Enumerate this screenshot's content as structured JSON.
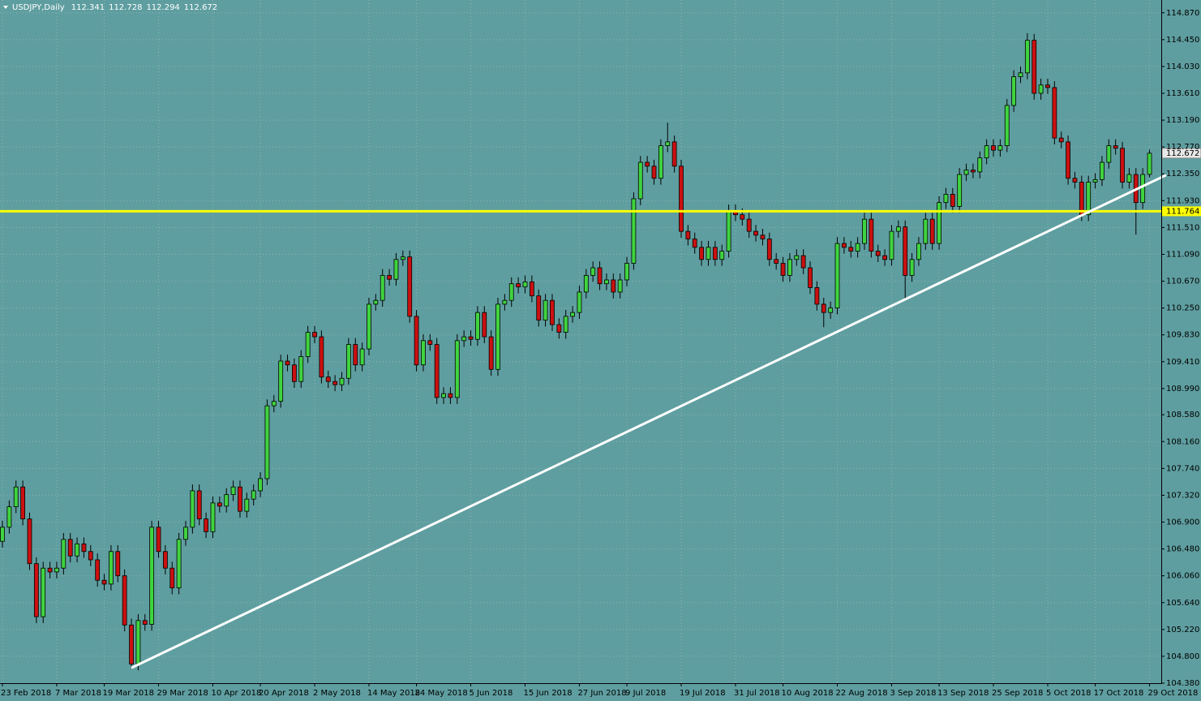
{
  "chart_data": {
    "type": "candlestick",
    "title": "USDJPY,Daily",
    "categories": [
      "23 Feb 2018",
      null,
      null,
      null,
      null,
      null,
      null,
      null,
      "7 Mar 2018",
      null,
      null,
      null,
      null,
      null,
      null,
      "19 Mar 2018",
      null,
      null,
      null,
      null,
      null,
      null,
      null,
      "29 Mar 2018",
      null,
      null,
      null,
      null,
      null,
      null,
      null,
      "10 Apr 2018",
      null,
      null,
      null,
      null,
      null,
      null,
      "20 Apr 2018",
      null,
      null,
      null,
      null,
      null,
      null,
      null,
      "2 May 2018",
      null,
      null,
      null,
      null,
      null,
      null,
      null,
      "14 May 2018",
      null,
      null,
      null,
      null,
      null,
      null,
      "24 May 2018",
      null,
      null,
      null,
      null,
      null,
      null,
      null,
      "5 Jun 2018",
      null,
      null,
      null,
      null,
      null,
      null,
      null,
      "15 Jun 2018",
      null,
      null,
      null,
      null,
      null,
      null,
      null,
      "27 Jun 2018",
      null,
      null,
      null,
      null,
      null,
      null,
      "9 Jul 2018",
      null,
      null,
      null,
      null,
      null,
      null,
      null,
      "19 Jul 2018",
      null,
      null,
      null,
      null,
      null,
      null,
      null,
      "31 Jul 2018",
      null,
      null,
      null,
      null,
      null,
      null,
      "10 Aug 2018",
      null,
      null,
      null,
      null,
      null,
      null,
      null,
      "22 Aug 2018",
      null,
      null,
      null,
      null,
      null,
      null,
      null,
      "3 Sep 2018",
      null,
      null,
      null,
      null,
      null,
      null,
      "13 Sep 2018",
      null,
      null,
      null,
      null,
      null,
      null,
      null,
      "25 Sep 2018",
      null,
      null,
      null,
      null,
      null,
      null,
      null,
      "5 Oct 2018",
      null,
      null,
      null,
      null,
      null,
      null,
      "17 Oct 2018",
      null,
      null,
      null,
      null,
      null,
      null,
      null,
      "29 Oct 2018"
    ],
    "ohlc": [
      [
        106.6,
        106.92,
        106.5,
        106.82
      ],
      [
        106.82,
        107.24,
        106.72,
        107.14
      ],
      [
        107.14,
        107.55,
        107.04,
        107.45
      ],
      [
        107.45,
        107.55,
        106.85,
        106.95
      ],
      [
        106.95,
        107.05,
        106.15,
        106.25
      ],
      [
        106.25,
        106.35,
        105.32,
        105.42
      ],
      [
        105.42,
        106.28,
        105.32,
        106.18
      ],
      [
        106.18,
        106.28,
        106.02,
        106.12
      ],
      [
        106.12,
        106.28,
        106.02,
        106.18
      ],
      [
        106.18,
        106.73,
        106.08,
        106.63
      ],
      [
        106.63,
        106.73,
        106.27,
        106.37
      ],
      [
        106.37,
        106.66,
        106.27,
        106.56
      ],
      [
        106.56,
        106.66,
        106.34,
        106.44
      ],
      [
        106.44,
        106.54,
        106.21,
        106.31
      ],
      [
        106.31,
        106.41,
        105.89,
        105.99
      ],
      [
        105.99,
        106.09,
        105.83,
        105.93
      ],
      [
        105.93,
        106.54,
        105.83,
        106.44
      ],
      [
        106.44,
        106.54,
        105.96,
        106.06
      ],
      [
        106.06,
        106.16,
        105.19,
        105.29
      ],
      [
        105.29,
        105.39,
        104.62,
        104.68
      ],
      [
        104.68,
        105.46,
        104.58,
        105.36
      ],
      [
        105.36,
        105.46,
        105.2,
        105.3
      ],
      [
        105.3,
        106.92,
        105.2,
        106.82
      ],
      [
        106.82,
        106.92,
        106.34,
        106.44
      ],
      [
        106.44,
        106.54,
        106.08,
        106.18
      ],
      [
        106.18,
        106.28,
        105.77,
        105.87
      ],
      [
        105.87,
        106.73,
        105.77,
        106.63
      ],
      [
        106.63,
        106.92,
        106.53,
        106.82
      ],
      [
        106.82,
        107.49,
        106.72,
        107.39
      ],
      [
        107.39,
        107.49,
        106.85,
        106.95
      ],
      [
        106.95,
        107.05,
        106.65,
        106.75
      ],
      [
        106.75,
        107.3,
        106.65,
        107.2
      ],
      [
        107.2,
        107.3,
        107.05,
        107.15
      ],
      [
        107.15,
        107.43,
        107.05,
        107.33
      ],
      [
        107.33,
        107.55,
        107.23,
        107.45
      ],
      [
        107.45,
        107.55,
        106.97,
        107.07
      ],
      [
        107.07,
        107.36,
        106.97,
        107.26
      ],
      [
        107.26,
        107.49,
        107.16,
        107.39
      ],
      [
        107.39,
        107.68,
        107.29,
        107.58
      ],
      [
        107.58,
        108.82,
        107.48,
        108.72
      ],
      [
        108.72,
        108.89,
        108.62,
        108.79
      ],
      [
        108.79,
        109.52,
        108.69,
        109.42
      ],
      [
        109.42,
        109.52,
        109.26,
        109.36
      ],
      [
        109.36,
        109.46,
        109.0,
        109.1
      ],
      [
        109.1,
        109.59,
        109.0,
        109.49
      ],
      [
        109.49,
        109.97,
        109.39,
        109.87
      ],
      [
        109.87,
        109.97,
        109.7,
        109.8
      ],
      [
        109.8,
        109.9,
        109.07,
        109.17
      ],
      [
        109.17,
        109.27,
        109.0,
        109.1
      ],
      [
        109.1,
        109.2,
        108.95,
        109.05
      ],
      [
        109.05,
        109.25,
        108.95,
        109.15
      ],
      [
        109.15,
        109.78,
        109.05,
        109.68
      ],
      [
        109.68,
        109.78,
        109.26,
        109.36
      ],
      [
        109.36,
        109.71,
        109.26,
        109.61
      ],
      [
        109.61,
        110.41,
        109.51,
        110.31
      ],
      [
        110.31,
        110.47,
        110.21,
        110.37
      ],
      [
        110.37,
        110.86,
        110.27,
        110.76
      ],
      [
        110.76,
        110.86,
        110.6,
        110.7
      ],
      [
        110.7,
        111.11,
        110.6,
        111.01
      ],
      [
        111.01,
        111.15,
        110.91,
        111.05
      ],
      [
        111.05,
        111.15,
        110.02,
        110.12
      ],
      [
        110.12,
        110.22,
        109.26,
        109.36
      ],
      [
        109.36,
        109.84,
        109.26,
        109.74
      ],
      [
        109.74,
        109.84,
        109.58,
        109.68
      ],
      [
        109.68,
        109.78,
        108.75,
        108.85
      ],
      [
        108.85,
        109.01,
        108.75,
        108.91
      ],
      [
        108.91,
        109.01,
        108.75,
        108.85
      ],
      [
        108.85,
        109.84,
        108.75,
        109.74
      ],
      [
        109.74,
        109.9,
        109.64,
        109.8
      ],
      [
        109.8,
        109.9,
        109.66,
        109.76
      ],
      [
        109.76,
        110.28,
        109.66,
        110.18
      ],
      [
        110.18,
        110.28,
        109.7,
        109.8
      ],
      [
        109.8,
        109.9,
        109.19,
        109.29
      ],
      [
        109.29,
        110.41,
        109.19,
        110.31
      ],
      [
        110.31,
        110.47,
        110.21,
        110.37
      ],
      [
        110.37,
        110.73,
        110.27,
        110.63
      ],
      [
        110.63,
        110.73,
        110.48,
        110.58
      ],
      [
        110.58,
        110.76,
        110.48,
        110.66
      ],
      [
        110.66,
        110.76,
        110.34,
        110.44
      ],
      [
        110.44,
        110.54,
        109.96,
        110.06
      ],
      [
        110.06,
        110.47,
        109.96,
        110.37
      ],
      [
        110.37,
        110.47,
        109.89,
        109.99
      ],
      [
        109.99,
        110.09,
        109.77,
        109.87
      ],
      [
        109.87,
        110.22,
        109.77,
        110.12
      ],
      [
        110.12,
        110.28,
        110.02,
        110.18
      ],
      [
        110.18,
        110.6,
        110.08,
        110.5
      ],
      [
        110.5,
        110.86,
        110.4,
        110.76
      ],
      [
        110.76,
        110.98,
        110.66,
        110.88
      ],
      [
        110.88,
        110.98,
        110.53,
        110.63
      ],
      [
        110.63,
        110.79,
        110.53,
        110.69
      ],
      [
        110.69,
        110.79,
        110.4,
        110.5
      ],
      [
        110.5,
        110.79,
        110.4,
        110.69
      ],
      [
        110.69,
        111.05,
        110.59,
        110.95
      ],
      [
        110.95,
        112.06,
        110.85,
        111.96
      ],
      [
        111.96,
        112.63,
        111.86,
        112.53
      ],
      [
        112.53,
        112.63,
        112.37,
        112.47
      ],
      [
        112.47,
        112.57,
        112.18,
        112.28
      ],
      [
        112.28,
        112.89,
        112.18,
        112.79
      ],
      [
        112.79,
        113.15,
        112.69,
        112.85
      ],
      [
        112.85,
        112.95,
        112.37,
        112.47
      ],
      [
        112.47,
        112.57,
        111.35,
        111.45
      ],
      [
        111.45,
        111.55,
        111.23,
        111.33
      ],
      [
        111.33,
        111.43,
        111.1,
        111.2
      ],
      [
        111.2,
        111.3,
        110.91,
        111.01
      ],
      [
        111.01,
        111.3,
        110.91,
        111.2
      ],
      [
        111.2,
        111.3,
        110.91,
        111.01
      ],
      [
        111.01,
        111.24,
        110.91,
        111.14
      ],
      [
        111.14,
        111.87,
        111.04,
        111.77
      ],
      [
        111.77,
        111.87,
        111.61,
        111.71
      ],
      [
        111.71,
        111.81,
        111.54,
        111.64
      ],
      [
        111.64,
        111.74,
        111.35,
        111.45
      ],
      [
        111.45,
        111.55,
        111.29,
        111.39
      ],
      [
        111.39,
        111.49,
        111.23,
        111.33
      ],
      [
        111.33,
        111.43,
        110.91,
        111.01
      ],
      [
        111.01,
        111.11,
        110.85,
        110.95
      ],
      [
        110.95,
        111.05,
        110.66,
        110.76
      ],
      [
        110.76,
        111.11,
        110.66,
        111.01
      ],
      [
        111.01,
        111.17,
        110.91,
        111.07
      ],
      [
        111.07,
        111.17,
        110.78,
        110.88
      ],
      [
        110.88,
        110.98,
        110.47,
        110.57
      ],
      [
        110.57,
        110.67,
        110.21,
        110.31
      ],
      [
        110.31,
        110.41,
        109.95,
        110.18
      ],
      [
        110.18,
        110.35,
        110.08,
        110.25
      ],
      [
        110.25,
        111.36,
        110.15,
        111.26
      ],
      [
        111.26,
        111.36,
        111.1,
        111.2
      ],
      [
        111.2,
        111.3,
        111.04,
        111.14
      ],
      [
        111.14,
        111.36,
        111.04,
        111.26
      ],
      [
        111.26,
        111.74,
        111.16,
        111.64
      ],
      [
        111.64,
        111.74,
        111.04,
        111.14
      ],
      [
        111.14,
        111.24,
        110.97,
        111.07
      ],
      [
        111.07,
        111.17,
        110.91,
        111.01
      ],
      [
        111.01,
        111.55,
        110.91,
        111.45
      ],
      [
        111.45,
        111.62,
        111.35,
        111.52
      ],
      [
        111.52,
        111.62,
        110.4,
        110.76
      ],
      [
        110.76,
        111.11,
        110.66,
        111.01
      ],
      [
        111.01,
        111.36,
        110.91,
        111.26
      ],
      [
        111.26,
        111.74,
        111.16,
        111.64
      ],
      [
        111.64,
        111.74,
        111.16,
        111.26
      ],
      [
        111.26,
        112.0,
        111.16,
        111.9
      ],
      [
        111.9,
        112.13,
        111.8,
        112.03
      ],
      [
        112.03,
        112.13,
        111.74,
        111.84
      ],
      [
        111.84,
        112.44,
        111.74,
        112.34
      ],
      [
        112.34,
        112.51,
        112.24,
        112.41
      ],
      [
        112.41,
        112.51,
        112.28,
        112.38
      ],
      [
        112.38,
        112.7,
        112.28,
        112.6
      ],
      [
        112.6,
        112.89,
        112.5,
        112.79
      ],
      [
        112.79,
        112.89,
        112.62,
        112.72
      ],
      [
        112.72,
        112.89,
        112.62,
        112.79
      ],
      [
        112.79,
        113.52,
        112.69,
        113.42
      ],
      [
        113.42,
        113.97,
        113.32,
        113.87
      ],
      [
        113.87,
        114.03,
        113.77,
        113.93
      ],
      [
        113.93,
        114.55,
        113.83,
        114.44
      ],
      [
        114.44,
        114.54,
        113.51,
        113.61
      ],
      [
        113.61,
        113.84,
        113.51,
        113.74
      ],
      [
        113.74,
        113.84,
        113.6,
        113.7
      ],
      [
        113.7,
        113.8,
        112.81,
        112.91
      ],
      [
        112.91,
        113.01,
        112.75,
        112.85
      ],
      [
        112.85,
        112.95,
        112.18,
        112.28
      ],
      [
        112.28,
        112.38,
        112.12,
        112.22
      ],
      [
        112.22,
        112.32,
        111.61,
        111.71
      ],
      [
        111.71,
        112.32,
        111.61,
        112.22
      ],
      [
        112.22,
        112.36,
        112.12,
        112.26
      ],
      [
        112.26,
        112.63,
        112.16,
        112.53
      ],
      [
        112.53,
        112.89,
        112.43,
        112.79
      ],
      [
        112.79,
        112.89,
        112.65,
        112.75
      ],
      [
        112.75,
        112.85,
        112.12,
        112.22
      ],
      [
        112.22,
        112.44,
        112.12,
        112.34
      ],
      [
        112.34,
        112.44,
        111.4,
        111.9
      ],
      [
        111.9,
        112.44,
        111.8,
        112.34
      ],
      [
        112.341,
        112.728,
        112.294,
        112.672
      ]
    ],
    "up_color": "#3fd43f",
    "down_color": "#cc1010",
    "hline": {
      "value": 111.764,
      "color": "#ffff00"
    },
    "trendline": [
      104.62,
      112.33
    ],
    "ylim": [
      104.38,
      115.07
    ],
    "yticks": [
      {
        "value": 114.87,
        "label": "114.870"
      },
      {
        "value": 114.45,
        "label": "114.450"
      },
      {
        "value": 114.03,
        "label": "114.030"
      },
      {
        "value": 113.61,
        "label": "113.610"
      },
      {
        "value": 113.19,
        "label": "113.190"
      },
      {
        "value": 112.77,
        "label": "112.770"
      },
      {
        "value": 112.35,
        "label": "112.350"
      },
      {
        "value": 111.93,
        "label": "111.930"
      },
      {
        "value": 111.51,
        "label": "111.510"
      },
      {
        "value": 111.09,
        "label": "111.090"
      },
      {
        "value": 110.67,
        "label": "110.670"
      },
      {
        "value": 110.25,
        "label": "110.250"
      },
      {
        "value": 109.83,
        "label": "109.830"
      },
      {
        "value": 109.41,
        "label": "109.410"
      },
      {
        "value": 108.99,
        "label": "108.990"
      },
      {
        "value": 108.58,
        "label": "108.580"
      },
      {
        "value": 108.16,
        "label": "108.160"
      },
      {
        "value": 107.74,
        "label": "107.740"
      },
      {
        "value": 107.32,
        "label": "107.320"
      },
      {
        "value": 106.9,
        "label": "106.900"
      },
      {
        "value": 106.48,
        "label": "106.480"
      },
      {
        "value": 106.06,
        "label": "106.060"
      },
      {
        "value": 105.64,
        "label": "105.640"
      },
      {
        "value": 105.22,
        "label": "105.220"
      },
      {
        "value": 104.8,
        "label": "104.800"
      },
      {
        "value": 104.38,
        "label": "104.380"
      }
    ],
    "grid": true
  }
}
